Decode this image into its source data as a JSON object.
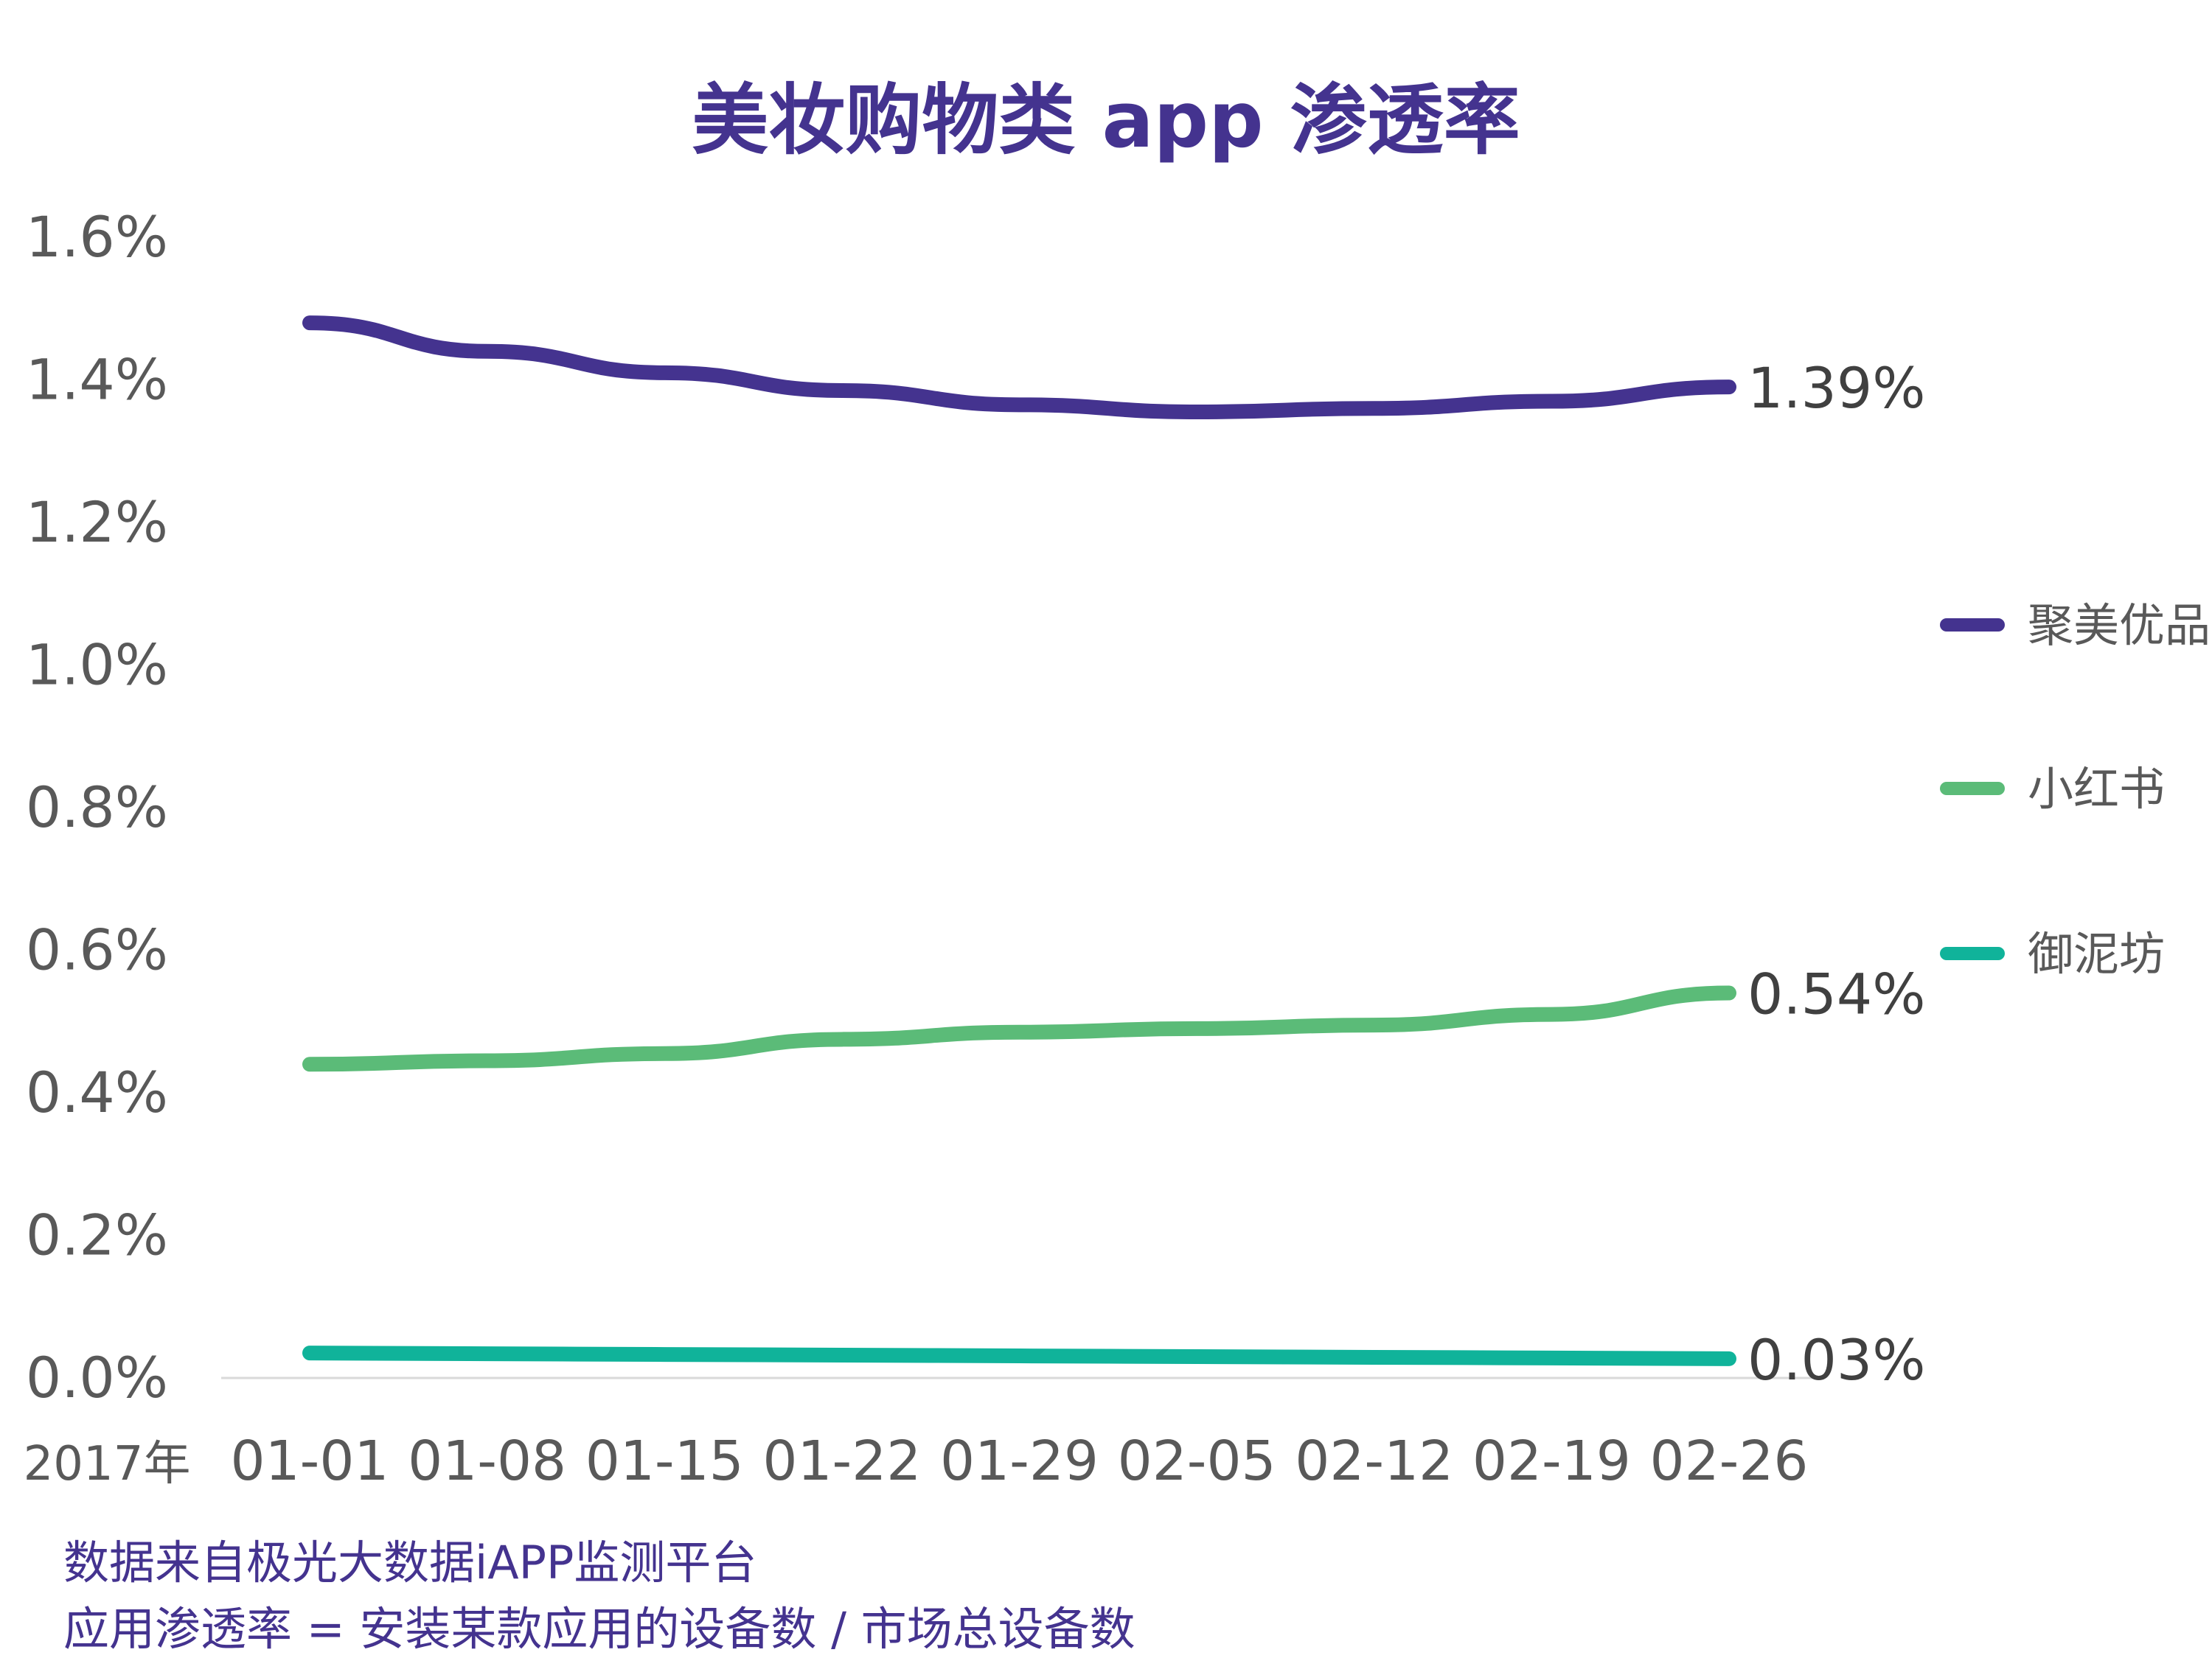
{
  "title": "美妆购物类 app 渗透率",
  "footnotes": [
    "数据来自极光大数据iAPP监测平台",
    "应用渗透率 = 安装某款应用的设备数 / 市场总设备数"
  ],
  "chart_data": {
    "type": "line",
    "title": "美妆购物类 app 渗透率",
    "xlabel": "2017年",
    "ylabel": "",
    "x": [
      "01-01",
      "01-08",
      "01-15",
      "01-22",
      "01-29",
      "02-05",
      "02-12",
      "02-19",
      "02-26"
    ],
    "y_ticks": [
      "0.0%",
      "0.2%",
      "0.4%",
      "0.6%",
      "0.8%",
      "1.0%",
      "1.2%",
      "1.4%",
      "1.6%"
    ],
    "ylim": [
      0,
      1.6
    ],
    "y_unit": "%",
    "grid": false,
    "legend_position": "right",
    "series": [
      {
        "name": "聚美优品",
        "color": "#44338f",
        "values": [
          1.48,
          1.44,
          1.41,
          1.385,
          1.365,
          1.355,
          1.36,
          1.37,
          1.39
        ],
        "end_label": "1.39%"
      },
      {
        "name": "小红书",
        "color": "#5bbb78",
        "values": [
          0.44,
          0.445,
          0.455,
          0.475,
          0.485,
          0.49,
          0.495,
          0.51,
          0.54
        ],
        "end_label": "0.54%"
      },
      {
        "name": "御泥坊",
        "color": "#10b39a",
        "values": [
          0.035,
          0.034,
          0.033,
          0.032,
          0.031,
          0.03,
          0.029,
          0.028,
          0.027
        ],
        "end_label": "0.03%"
      }
    ]
  }
}
